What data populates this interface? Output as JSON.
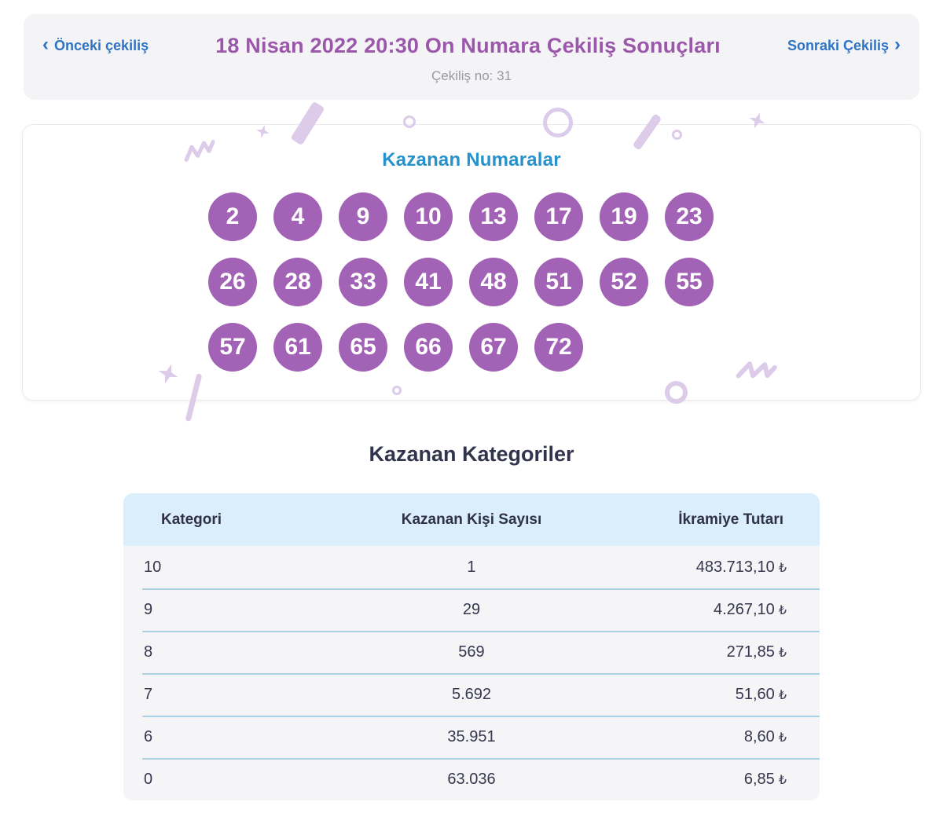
{
  "colors": {
    "title_purple": "#9b58ab",
    "link_blue": "#2d74c4",
    "numbers_blue": "#2791cc",
    "ball_purple": "#a262b5",
    "confetti_lilac": "#dccbe9",
    "table_header_bg": "#daeefb",
    "row_bg": "#f5f4f7",
    "separator_blue": "#aad2e4",
    "header_card_bg": "#f4f3f6"
  },
  "icons": {
    "chevron_left": "‹",
    "chevron_right": "›"
  },
  "header": {
    "prev_label": "Önceki çekiliş",
    "title": "18 Nisan 2022 20:30 On Numara Çekiliş Sonuçları",
    "next_label": "Sonraki Çekiliş",
    "draw_no_label": "Çekiliş no: 31"
  },
  "numbers": {
    "title": "Kazanan Numaralar",
    "rows": [
      [
        "2",
        "4",
        "9",
        "10",
        "13",
        "17",
        "19",
        "23"
      ],
      [
        "26",
        "28",
        "33",
        "41",
        "48",
        "51",
        "52",
        "55"
      ],
      [
        "57",
        "61",
        "65",
        "66",
        "67",
        "72"
      ]
    ]
  },
  "categories": {
    "title": "Kazanan Kategoriler",
    "columns": [
      "Kategori",
      "Kazanan Kişi Sayısı",
      "İkramiye Tutarı"
    ],
    "currency": "₺",
    "rows": [
      {
        "kategori": "10",
        "kisi": "1",
        "tutar": "483.713,10"
      },
      {
        "kategori": "9",
        "kisi": "29",
        "tutar": "4.267,10"
      },
      {
        "kategori": "8",
        "kisi": "569",
        "tutar": "271,85"
      },
      {
        "kategori": "7",
        "kisi": "5.692",
        "tutar": "51,60"
      },
      {
        "kategori": "6",
        "kisi": "35.951",
        "tutar": "8,60"
      },
      {
        "kategori": "0",
        "kisi": "63.036",
        "tutar": "6,85"
      }
    ]
  }
}
